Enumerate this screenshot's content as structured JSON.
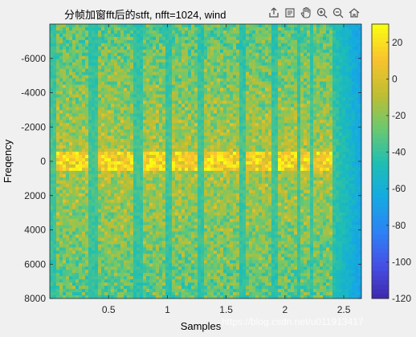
{
  "title": "分帧加窗fft后的stft, nfft=1024, wind",
  "watermark": "https://blog.csdn.net/u011913417",
  "toolbar": {
    "icons": [
      "export-icon",
      "brush-icon",
      "pan-hand-icon",
      "zoom-in-icon",
      "zoom-out-icon",
      "home-icon"
    ]
  },
  "chart_data": {
    "type": "heatmap",
    "title": "分帧加窗fft后的stft, nfft=1024, wind",
    "xlabel": "Samples",
    "ylabel": "Freqency",
    "xlim": [
      0,
      2.65
    ],
    "ylim": [
      -8000,
      8000
    ],
    "y_reversed": true,
    "xticks": [
      0.5,
      1,
      1.5,
      2,
      2.5
    ],
    "xtick_labels": [
      "0.5",
      "1",
      "1.5",
      "2",
      "2.5"
    ],
    "yticks": [
      -6000,
      -4000,
      -2000,
      0,
      2000,
      4000,
      6000,
      8000
    ],
    "ytick_labels": [
      "-6000",
      "-4000",
      "-2000",
      "0",
      "2000",
      "4000",
      "6000",
      "8000"
    ],
    "colorbar": {
      "limits": [
        -120,
        30
      ],
      "ticks": [
        20,
        0,
        -20,
        -40,
        -60,
        -80,
        -100,
        -120
      ],
      "tick_labels": [
        "20",
        "0",
        "-20",
        "-40",
        "-60",
        "-80",
        "-100",
        "-120"
      ],
      "colormap": "parula"
    },
    "speech_segments": [
      [
        0.05,
        0.18
      ],
      [
        0.2,
        0.33
      ],
      [
        0.42,
        0.72
      ],
      [
        0.78,
        0.98
      ],
      [
        1.05,
        1.25
      ],
      [
        1.3,
        1.6
      ],
      [
        1.68,
        1.88
      ],
      [
        1.95,
        2.1
      ],
      [
        2.12,
        2.22
      ],
      [
        2.25,
        2.4
      ]
    ],
    "grid": false
  }
}
